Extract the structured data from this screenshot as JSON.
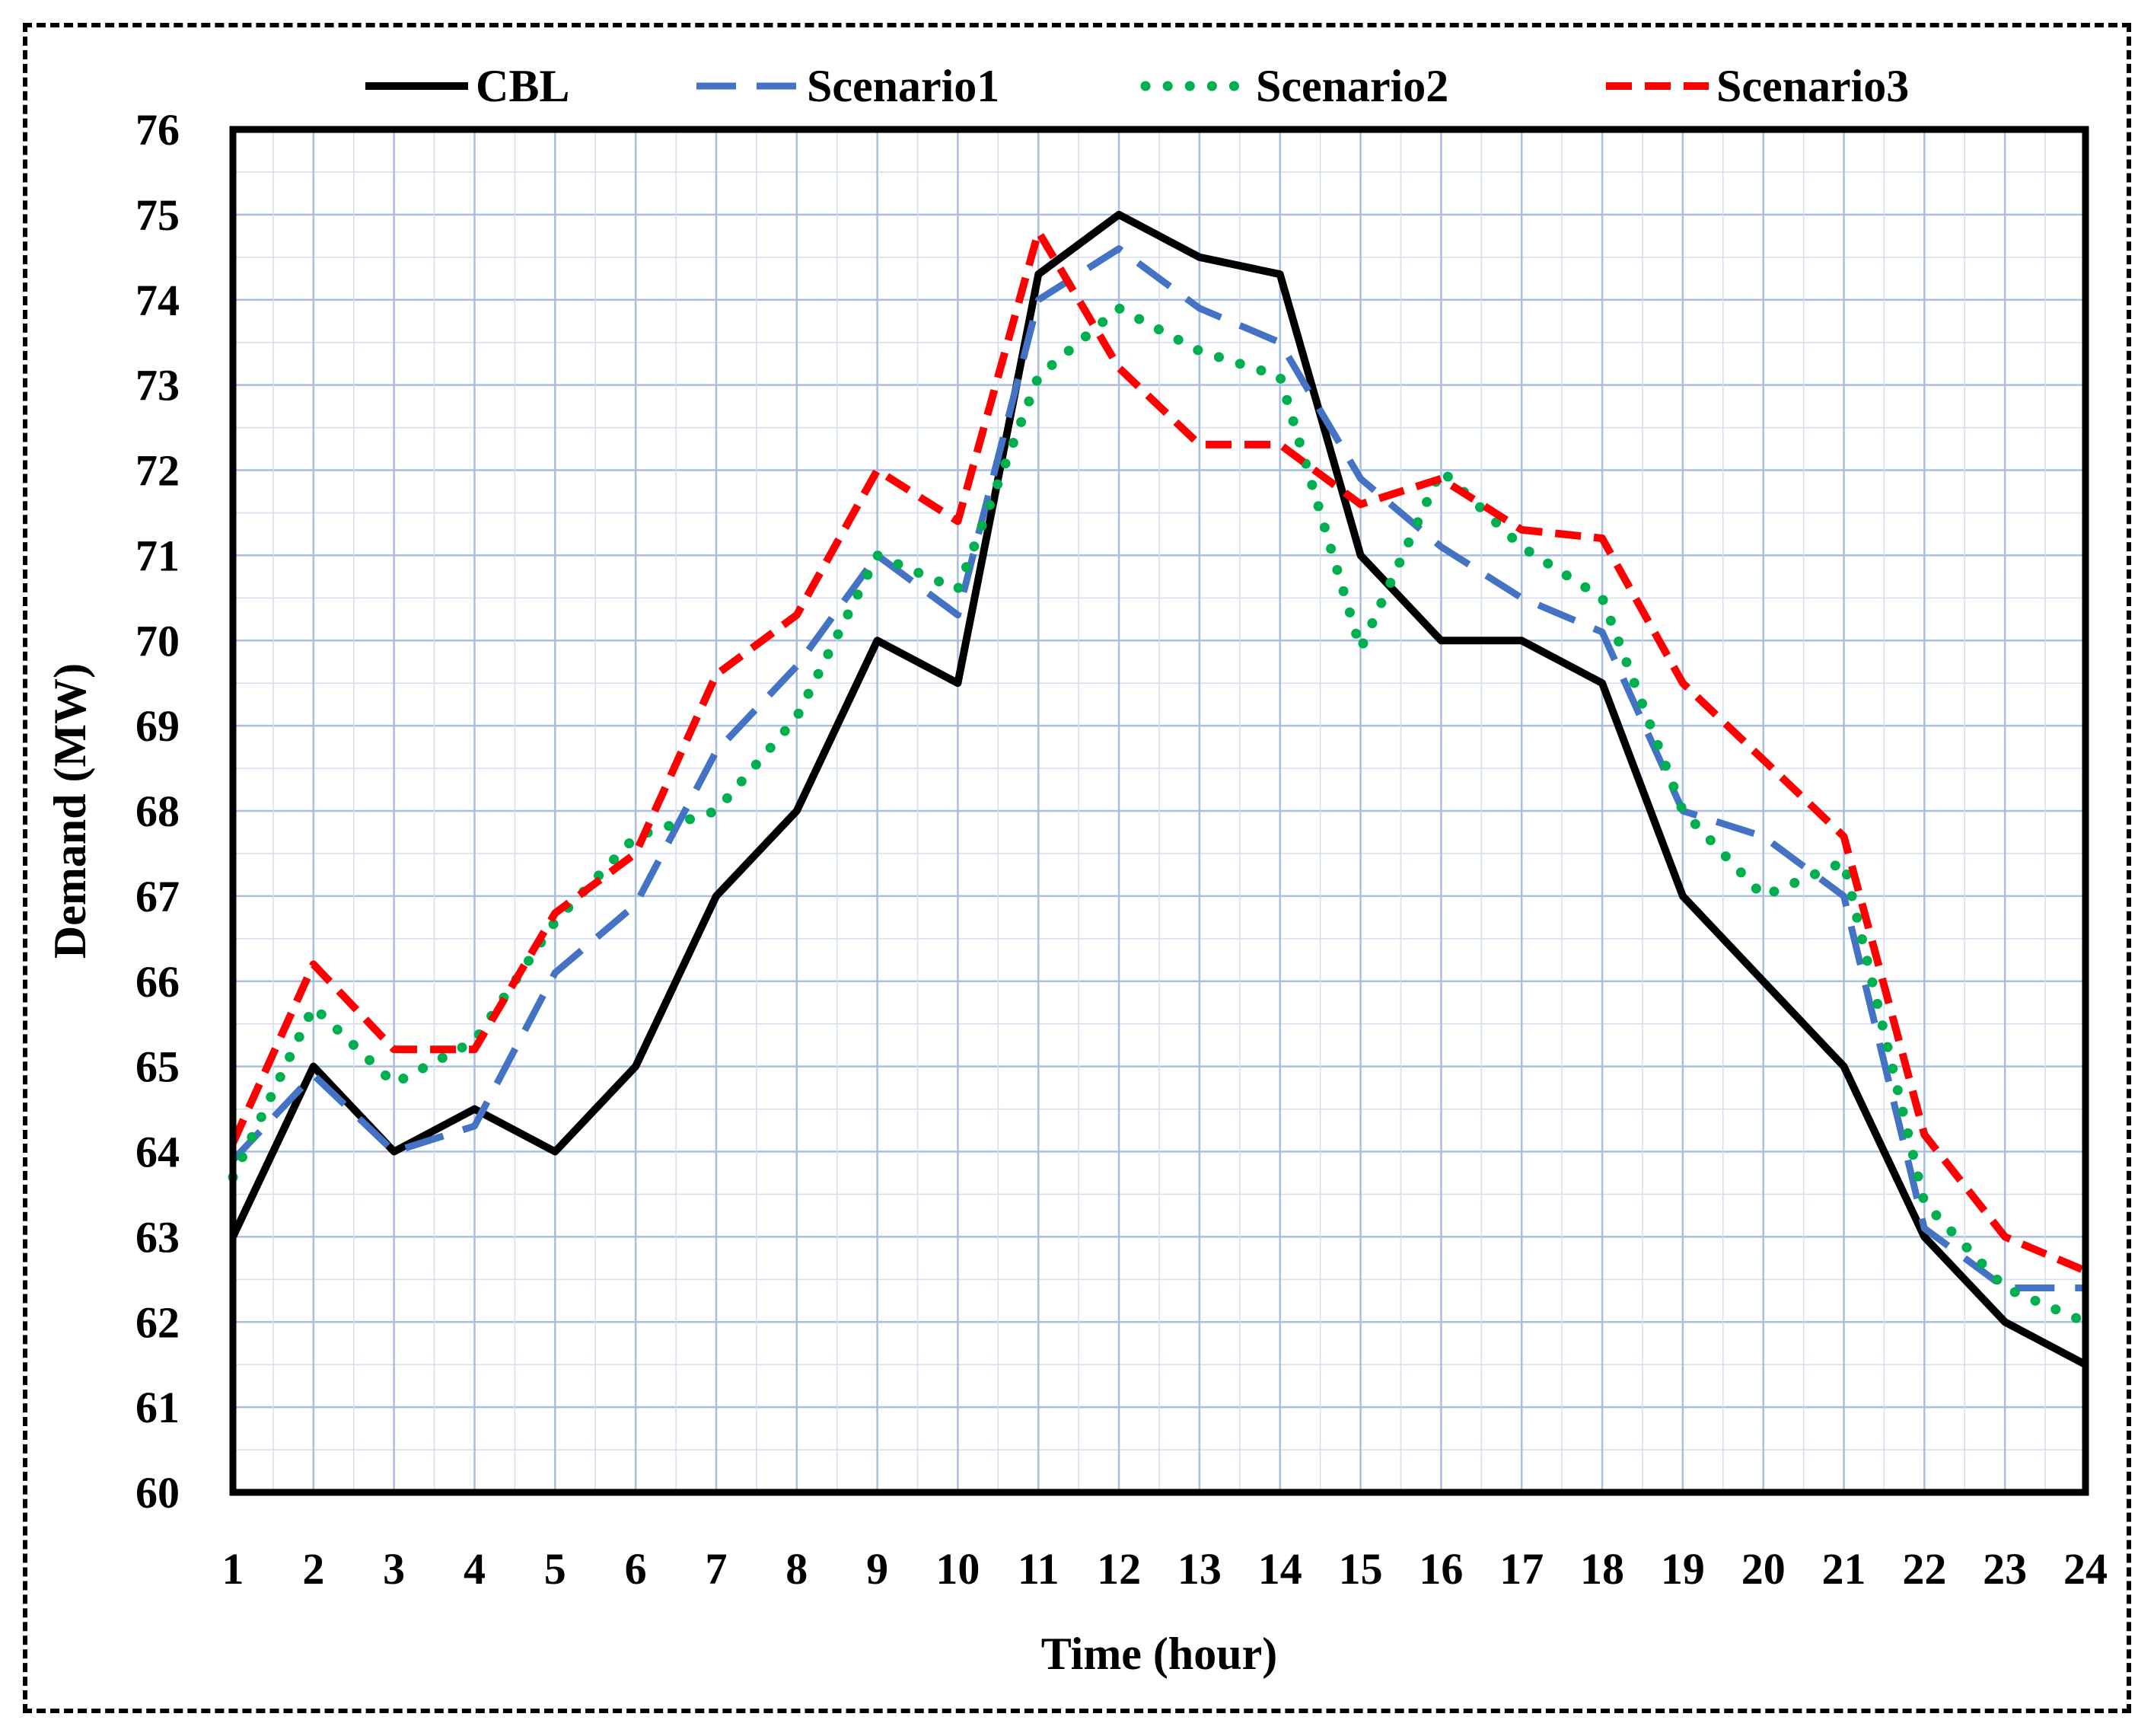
{
  "chart_data": {
    "type": "line",
    "title": "",
    "xlabel": "Time (hour)",
    "ylabel": "Demand (MW)",
    "x": [
      1,
      2,
      3,
      4,
      5,
      6,
      7,
      8,
      9,
      10,
      11,
      12,
      13,
      14,
      15,
      16,
      17,
      18,
      19,
      20,
      21,
      22,
      23,
      24
    ],
    "xlim": [
      1,
      24
    ],
    "ylim": [
      60,
      76
    ],
    "yticks": [
      60,
      61,
      62,
      63,
      64,
      65,
      66,
      67,
      68,
      69,
      70,
      71,
      72,
      73,
      74,
      75,
      76
    ],
    "grid": true,
    "legend_position": "top",
    "series": [
      {
        "name": "CBL",
        "color": "#000000",
        "style": "solid",
        "values": [
          63.0,
          65.0,
          64.0,
          64.5,
          64.0,
          65.0,
          67.0,
          68.0,
          70.0,
          69.5,
          74.3,
          75.0,
          74.5,
          74.3,
          71.0,
          70.0,
          70.0,
          69.5,
          67.0,
          66.0,
          65.0,
          63.0,
          62.0,
          61.5
        ]
      },
      {
        "name": "Scenario1",
        "color": "#4472C4",
        "style": "dashed",
        "values": [
          63.9,
          64.9,
          64.0,
          64.3,
          66.1,
          66.9,
          68.7,
          69.7,
          71.0,
          70.3,
          74.0,
          74.6,
          73.9,
          73.5,
          71.9,
          71.1,
          70.5,
          70.1,
          68.0,
          67.7,
          67.0,
          63.1,
          62.4,
          62.4
        ]
      },
      {
        "name": "Scenario2",
        "color": "#00B050",
        "style": "dotted",
        "values": [
          63.7,
          65.7,
          64.8,
          65.3,
          66.7,
          67.7,
          68.0,
          69.1,
          71.0,
          70.6,
          73.1,
          73.9,
          73.4,
          73.1,
          69.9,
          72.0,
          71.1,
          70.5,
          68.0,
          67.0,
          67.4,
          63.4,
          62.4,
          62.0
        ]
      },
      {
        "name": "Scenario3",
        "color": "#FF0000",
        "style": "dashed",
        "values": [
          64.1,
          66.2,
          65.2,
          65.2,
          66.8,
          67.5,
          69.6,
          70.3,
          72.0,
          71.4,
          74.8,
          73.2,
          72.3,
          72.3,
          71.6,
          71.9,
          71.3,
          71.2,
          69.5,
          68.6,
          67.7,
          64.2,
          63.0,
          62.6
        ]
      }
    ]
  }
}
